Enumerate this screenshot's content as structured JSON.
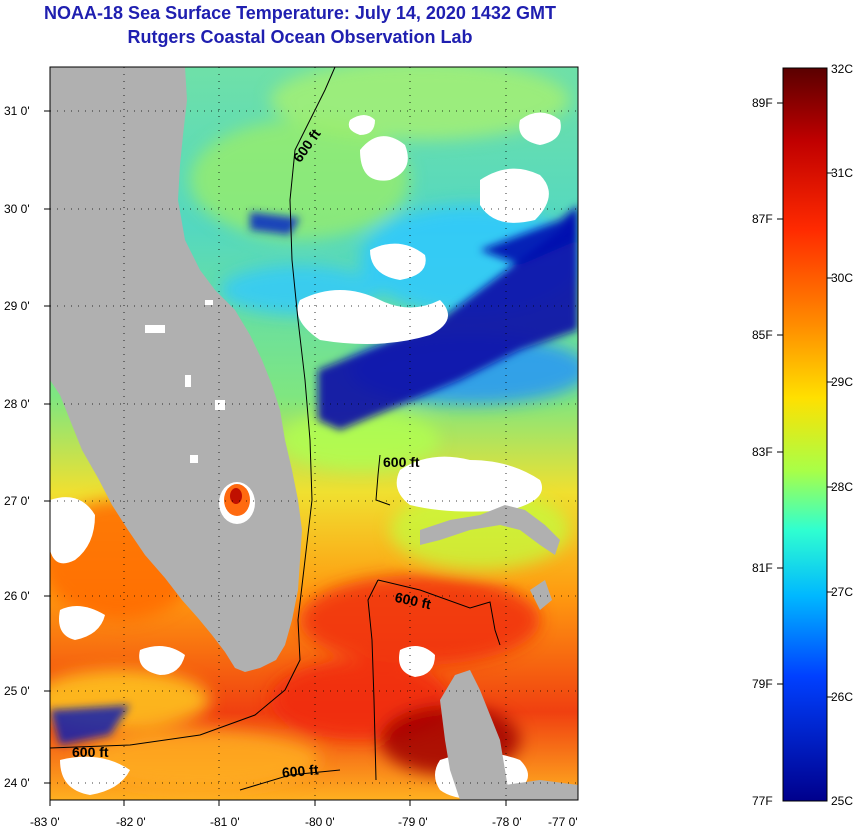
{
  "header": {
    "title": "NOAA-18 Sea Surface Temperature:  July 14, 2020 1432 GMT",
    "subtitle": "Rutgers Coastal Ocean Observation Lab"
  },
  "map": {
    "lon_labels": [
      "-83 0'",
      "-82 0'",
      "-81 0'",
      "-80 0'",
      "-79 0'",
      "-78 0'",
      "-77 0'"
    ],
    "lat_labels": [
      "31 0'",
      "30 0'",
      "29 0'",
      "28 0'",
      "27 0'",
      "26 0'",
      "25 0'",
      "24 0'"
    ],
    "contour_labels": [
      "600 ft",
      "600 ft",
      "600 ft",
      "600 ft",
      "600 ft"
    ]
  },
  "colorbar": {
    "celsius_labels": [
      "32C",
      "31C",
      "30C",
      "29C",
      "28C",
      "27C",
      "26C",
      "25C"
    ],
    "fahrenheit_labels": [
      "89F",
      "87F",
      "85F",
      "83F",
      "81F",
      "79F",
      "77F"
    ],
    "colors": [
      "#5a0000",
      "#c00000",
      "#ff3000",
      "#ff9000",
      "#ffe000",
      "#b0ff40",
      "#30ffd0",
      "#00b0ff",
      "#0040ff",
      "#0000a0"
    ]
  }
}
